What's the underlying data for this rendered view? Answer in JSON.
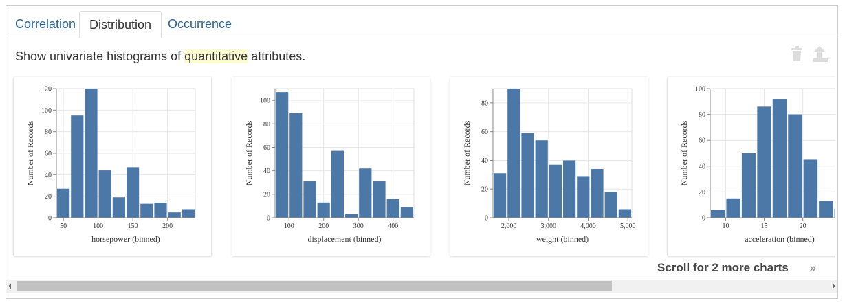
{
  "tabs": [
    "Correlation",
    "Distribution",
    "Occurrence"
  ],
  "description": [
    "Show univariate histograms of ",
    "quantitative",
    " attributes."
  ],
  "scroll_hint": "Scroll for 2 more charts",
  "chart_data": [
    {
      "type": "histogram",
      "xlabel": "horsepower (binned)",
      "ylabel": "Number of Records",
      "color": "#4c78a8",
      "grid": true,
      "bins": [
        40,
        60,
        80,
        100,
        120,
        140,
        160,
        180,
        200,
        220,
        240
      ],
      "values": [
        27,
        95,
        120,
        44,
        19,
        47,
        13,
        14,
        5,
        8
      ],
      "xlim": [
        40,
        240
      ],
      "xticks": [
        50,
        100,
        150,
        200
      ],
      "ylim": [
        0,
        120
      ],
      "yticks": [
        0,
        20,
        40,
        60,
        80,
        100,
        120
      ]
    },
    {
      "type": "histogram",
      "xlabel": "displacement (binned)",
      "ylabel": "Number of Records",
      "color": "#4c78a8",
      "grid": true,
      "bins": [
        60,
        100,
        140,
        180,
        220,
        260,
        300,
        340,
        380,
        420,
        460
      ],
      "values": [
        107,
        89,
        31,
        13,
        57,
        3,
        42,
        31,
        16,
        9
      ],
      "xlim": [
        60,
        460
      ],
      "xticks": [
        100,
        200,
        300,
        400
      ],
      "ylim": [
        0,
        110
      ],
      "yticks": [
        0,
        20,
        40,
        60,
        80,
        100
      ]
    },
    {
      "type": "histogram",
      "xlabel": "weight (binned)",
      "ylabel": "Number of Records",
      "color": "#4c78a8",
      "grid": true,
      "bins": [
        1600,
        1950,
        2300,
        2650,
        3000,
        3350,
        3700,
        4050,
        4400,
        4750,
        5100
      ],
      "values": [
        31,
        90,
        59,
        54,
        37,
        40,
        29,
        34,
        18,
        6
      ],
      "xlim": [
        1600,
        5100
      ],
      "xticks": [
        {
          "value": 2000,
          "label": "2,000"
        },
        {
          "value": 3000,
          "label": "3,000"
        },
        {
          "value": 4000,
          "label": "4,000"
        },
        {
          "value": 5000,
          "label": "5,000"
        }
      ],
      "ylim": [
        0,
        90
      ],
      "yticks": [
        0,
        20,
        40,
        60,
        80
      ]
    },
    {
      "type": "histogram",
      "xlabel": "acceleration (binned)",
      "ylabel": "Number of Records",
      "color": "#4c78a8",
      "grid": true,
      "bins": [
        8,
        10,
        12,
        14,
        16,
        18,
        20,
        22,
        24,
        26
      ],
      "values": [
        6,
        15,
        50,
        86,
        92,
        80,
        45,
        13,
        7
      ],
      "xlim": [
        8,
        26
      ],
      "xticks": [
        10,
        15,
        20
      ],
      "ylim": [
        0,
        100
      ],
      "yticks": [
        0,
        20,
        40,
        60,
        80,
        100
      ]
    }
  ]
}
